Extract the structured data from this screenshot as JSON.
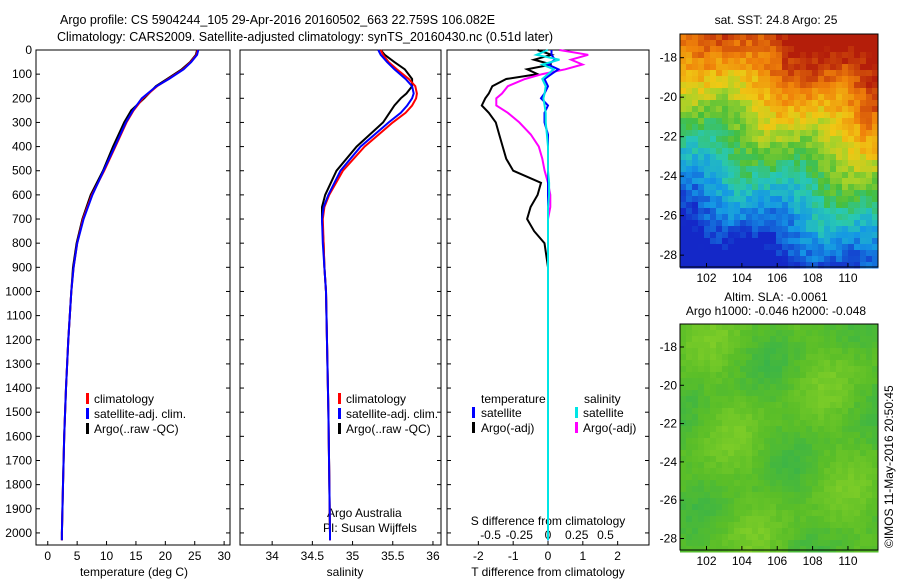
{
  "header": {
    "title_line1": "Argo profile: CS 5904244_105 29-Apr-2016 20160502_663 22.759S 106.082E",
    "title_line2": "Climatology: CARS2009. Satellite-adjusted climatology: synTS_20160430.nc (0.51d later)"
  },
  "depth_ticks": [
    0,
    100,
    200,
    300,
    400,
    500,
    600,
    700,
    800,
    900,
    1000,
    1100,
    1200,
    1300,
    1400,
    1500,
    1600,
    1700,
    1800,
    1900,
    2000
  ],
  "colors": {
    "climatology": "#ff0000",
    "satellite": "#0000ff",
    "argo": "#000000",
    "sal_satellite": "#00e5e5",
    "sal_argo": "#ff00ff"
  },
  "chart_data": [
    {
      "type": "line",
      "id": "temperature",
      "xlabel": "temperature (deg C)",
      "xlim": [
        -2,
        31
      ],
      "ylim": [
        2050,
        0
      ],
      "x_ticks": [
        0,
        5,
        10,
        15,
        20,
        25,
        30
      ],
      "x_tick_labels": [
        "0",
        "5",
        "10",
        "15",
        "20",
        "25",
        "30"
      ],
      "legend": [
        "climatology",
        "satellite-adj. clim.",
        "Argo(..raw -QC)"
      ],
      "depth": [
        0,
        20,
        50,
        80,
        120,
        150,
        200,
        250,
        300,
        400,
        500,
        600,
        700,
        800,
        900,
        1000,
        1200,
        1400,
        1600,
        1800,
        2000,
        2030
      ],
      "series": [
        {
          "name": "climatology",
          "values": [
            25.5,
            25.3,
            24.3,
            23.0,
            20.5,
            18.6,
            16.2,
            14.6,
            13.4,
            11.5,
            9.6,
            7.5,
            6.0,
            5.0,
            4.4,
            4.0,
            3.5,
            3.1,
            2.8,
            2.6,
            2.4,
            2.4
          ]
        },
        {
          "name": "satellite-adj. clim.",
          "values": [
            25.6,
            25.4,
            24.4,
            23.1,
            20.6,
            18.5,
            16.0,
            14.5,
            13.3,
            11.4,
            9.5,
            7.6,
            6.1,
            5.0,
            4.4,
            4.0,
            3.5,
            3.1,
            2.8,
            2.6,
            2.4,
            2.4
          ]
        },
        {
          "name": "Argo(..raw -QC)",
          "values": [
            25.4,
            25.2,
            24.2,
            22.8,
            20.3,
            18.4,
            16.4,
            14.2,
            13.0,
            11.1,
            9.4,
            7.3,
            5.9,
            4.9,
            4.3,
            4.0,
            3.5,
            3.1,
            2.8,
            2.6,
            2.4,
            2.4
          ]
        }
      ]
    },
    {
      "type": "line",
      "id": "salinity",
      "xlabel": "salinity",
      "xlim": [
        33.6,
        36.1
      ],
      "ylim": [
        2050,
        0
      ],
      "x_ticks": [
        34,
        34.5,
        35,
        35.5,
        36
      ],
      "x_tick_labels": [
        "34",
        "34.5",
        "35",
        "35.5",
        "36"
      ],
      "legend": [
        "climatology",
        "satellite-adj. clim.",
        "Argo(..raw -QC)"
      ],
      "annotation_line1": "Argo Australia",
      "annotation_line2": "PI: Susan Wijffels",
      "depth": [
        0,
        20,
        50,
        80,
        120,
        150,
        180,
        200,
        230,
        260,
        300,
        400,
        500,
        600,
        650,
        700,
        800,
        900,
        1000,
        1500,
        2000,
        2030
      ],
      "series": [
        {
          "name": "climatology",
          "values": [
            35.35,
            35.38,
            35.45,
            35.55,
            35.7,
            35.78,
            35.8,
            35.79,
            35.74,
            35.66,
            35.5,
            35.15,
            34.88,
            34.71,
            34.65,
            34.63,
            34.64,
            34.65,
            34.67,
            34.7,
            34.72,
            34.72
          ]
        },
        {
          "name": "satellite-adj. clim.",
          "values": [
            35.32,
            35.35,
            35.43,
            35.52,
            35.66,
            35.74,
            35.76,
            35.74,
            35.68,
            35.6,
            35.45,
            35.1,
            34.85,
            34.7,
            34.64,
            34.62,
            34.63,
            34.65,
            34.67,
            34.7,
            34.72,
            34.72
          ]
        },
        {
          "name": "Argo(..raw -QC)",
          "values": [
            35.35,
            35.4,
            35.52,
            35.65,
            35.74,
            35.74,
            35.67,
            35.6,
            35.52,
            35.46,
            35.38,
            35.05,
            34.8,
            34.66,
            34.62,
            34.62,
            34.64,
            34.65,
            34.67,
            34.7,
            34.72,
            34.72
          ]
        }
      ]
    },
    {
      "type": "line",
      "id": "difference",
      "xlabel": "T difference from climatology",
      "xlabel_top": "S difference from climatology",
      "xlim": [
        -2.9,
        2.9
      ],
      "ylim": [
        2050,
        0
      ],
      "x_ticks": [
        -2,
        -1,
        0,
        1,
        2
      ],
      "x_tick_labels": [
        "-2",
        "-1",
        "0",
        "1",
        "2"
      ],
      "s_ticks": [
        -0.5,
        -0.25,
        0,
        0.25,
        0.5
      ],
      "s_tick_labels": [
        "-0.5",
        "-0.25",
        "0",
        "0.25",
        "0.5"
      ],
      "legend_temp_title": "temperature",
      "legend_sal_title": "salinity",
      "legend_temp": [
        "satellite",
        "Argo(-adj)"
      ],
      "legend_sal": [
        "satellite",
        "Argo(-adj)"
      ],
      "depth": [
        0,
        20,
        40,
        60,
        80,
        100,
        120,
        150,
        180,
        200,
        230,
        260,
        300,
        350,
        400,
        450,
        500,
        550,
        600,
        650,
        700,
        750,
        800,
        900,
        1000,
        1200,
        1500,
        1800,
        2000,
        2030
      ],
      "series": [
        {
          "name": "T satellite",
          "values": [
            0.1,
            0.1,
            0.2,
            0.0,
            0.3,
            0.1,
            -0.1,
            0.0,
            -0.1,
            -0.2,
            0.0,
            -0.1,
            -0.1,
            0.0,
            0.0,
            0.0,
            0.0,
            0.0,
            0.0,
            0.0,
            0.0,
            0.0,
            0.0,
            0.0,
            0.0,
            0.0,
            0.0,
            0.0,
            0.0,
            0.0
          ]
        },
        {
          "name": "T Argo(-adj)",
          "values": [
            -0.3,
            0.1,
            -0.4,
            0.1,
            -0.6,
            -0.3,
            -1.2,
            -1.6,
            -1.7,
            -1.8,
            -1.9,
            -1.7,
            -1.5,
            -1.4,
            -1.3,
            -1.2,
            -1.0,
            -0.2,
            -0.3,
            -0.5,
            -0.6,
            -0.4,
            -0.1,
            0.0,
            0.0,
            0.0,
            0.0,
            0.0,
            0.0,
            0.0
          ]
        },
        {
          "name": "S satellite",
          "values": [
            0.0,
            -0.1,
            0.1,
            -0.05,
            0.05,
            0.0,
            -0.05,
            -0.02,
            -0.03,
            -0.04,
            -0.03,
            -0.02,
            -0.02,
            -0.01,
            0.0,
            0.0,
            0.0,
            0.01,
            0.01,
            0.0,
            0.0,
            0.0,
            0.0,
            0.0,
            0.0,
            0.0,
            0.0,
            0.0,
            0.0,
            0.0
          ]
        },
        {
          "name": "S Argo(-adj)",
          "values": [
            0.1,
            0.35,
            0.2,
            0.3,
            0.15,
            -0.05,
            -0.2,
            -0.35,
            -0.4,
            -0.45,
            -0.45,
            -0.35,
            -0.25,
            -0.15,
            -0.08,
            -0.05,
            -0.03,
            0.0,
            0.02,
            0.02,
            0.0,
            0.0,
            0.0,
            0.0,
            0.0,
            0.0,
            0.0,
            0.0,
            0.0,
            0.0
          ]
        }
      ]
    },
    {
      "type": "heatmap",
      "id": "sst-map",
      "title": "sat. SST: 24.8 Argo: 25",
      "xlim": [
        100.5,
        111.7
      ],
      "ylim": [
        -28.6,
        -16.8
      ],
      "x_ticks": [
        102,
        104,
        106,
        108,
        110
      ],
      "y_ticks": [
        -18,
        -20,
        -22,
        -24,
        -26,
        -28
      ],
      "argo_position": {
        "lon": 106.082,
        "lat": -22.759
      }
    },
    {
      "type": "heatmap",
      "id": "sla-map",
      "title_line1": "Altim. SLA: -0.0061",
      "title_line2": "Argo h1000: -0.046 h2000: -0.048",
      "xlim": [
        100.5,
        111.7
      ],
      "ylim": [
        -28.6,
        -16.8
      ],
      "x_ticks": [
        102,
        104,
        106,
        108,
        110
      ],
      "y_ticks": [
        -18,
        -20,
        -22,
        -24,
        -26,
        -28
      ]
    }
  ],
  "footer": {
    "stamp": "©IMOS 11-May-2016 20:50:45"
  }
}
